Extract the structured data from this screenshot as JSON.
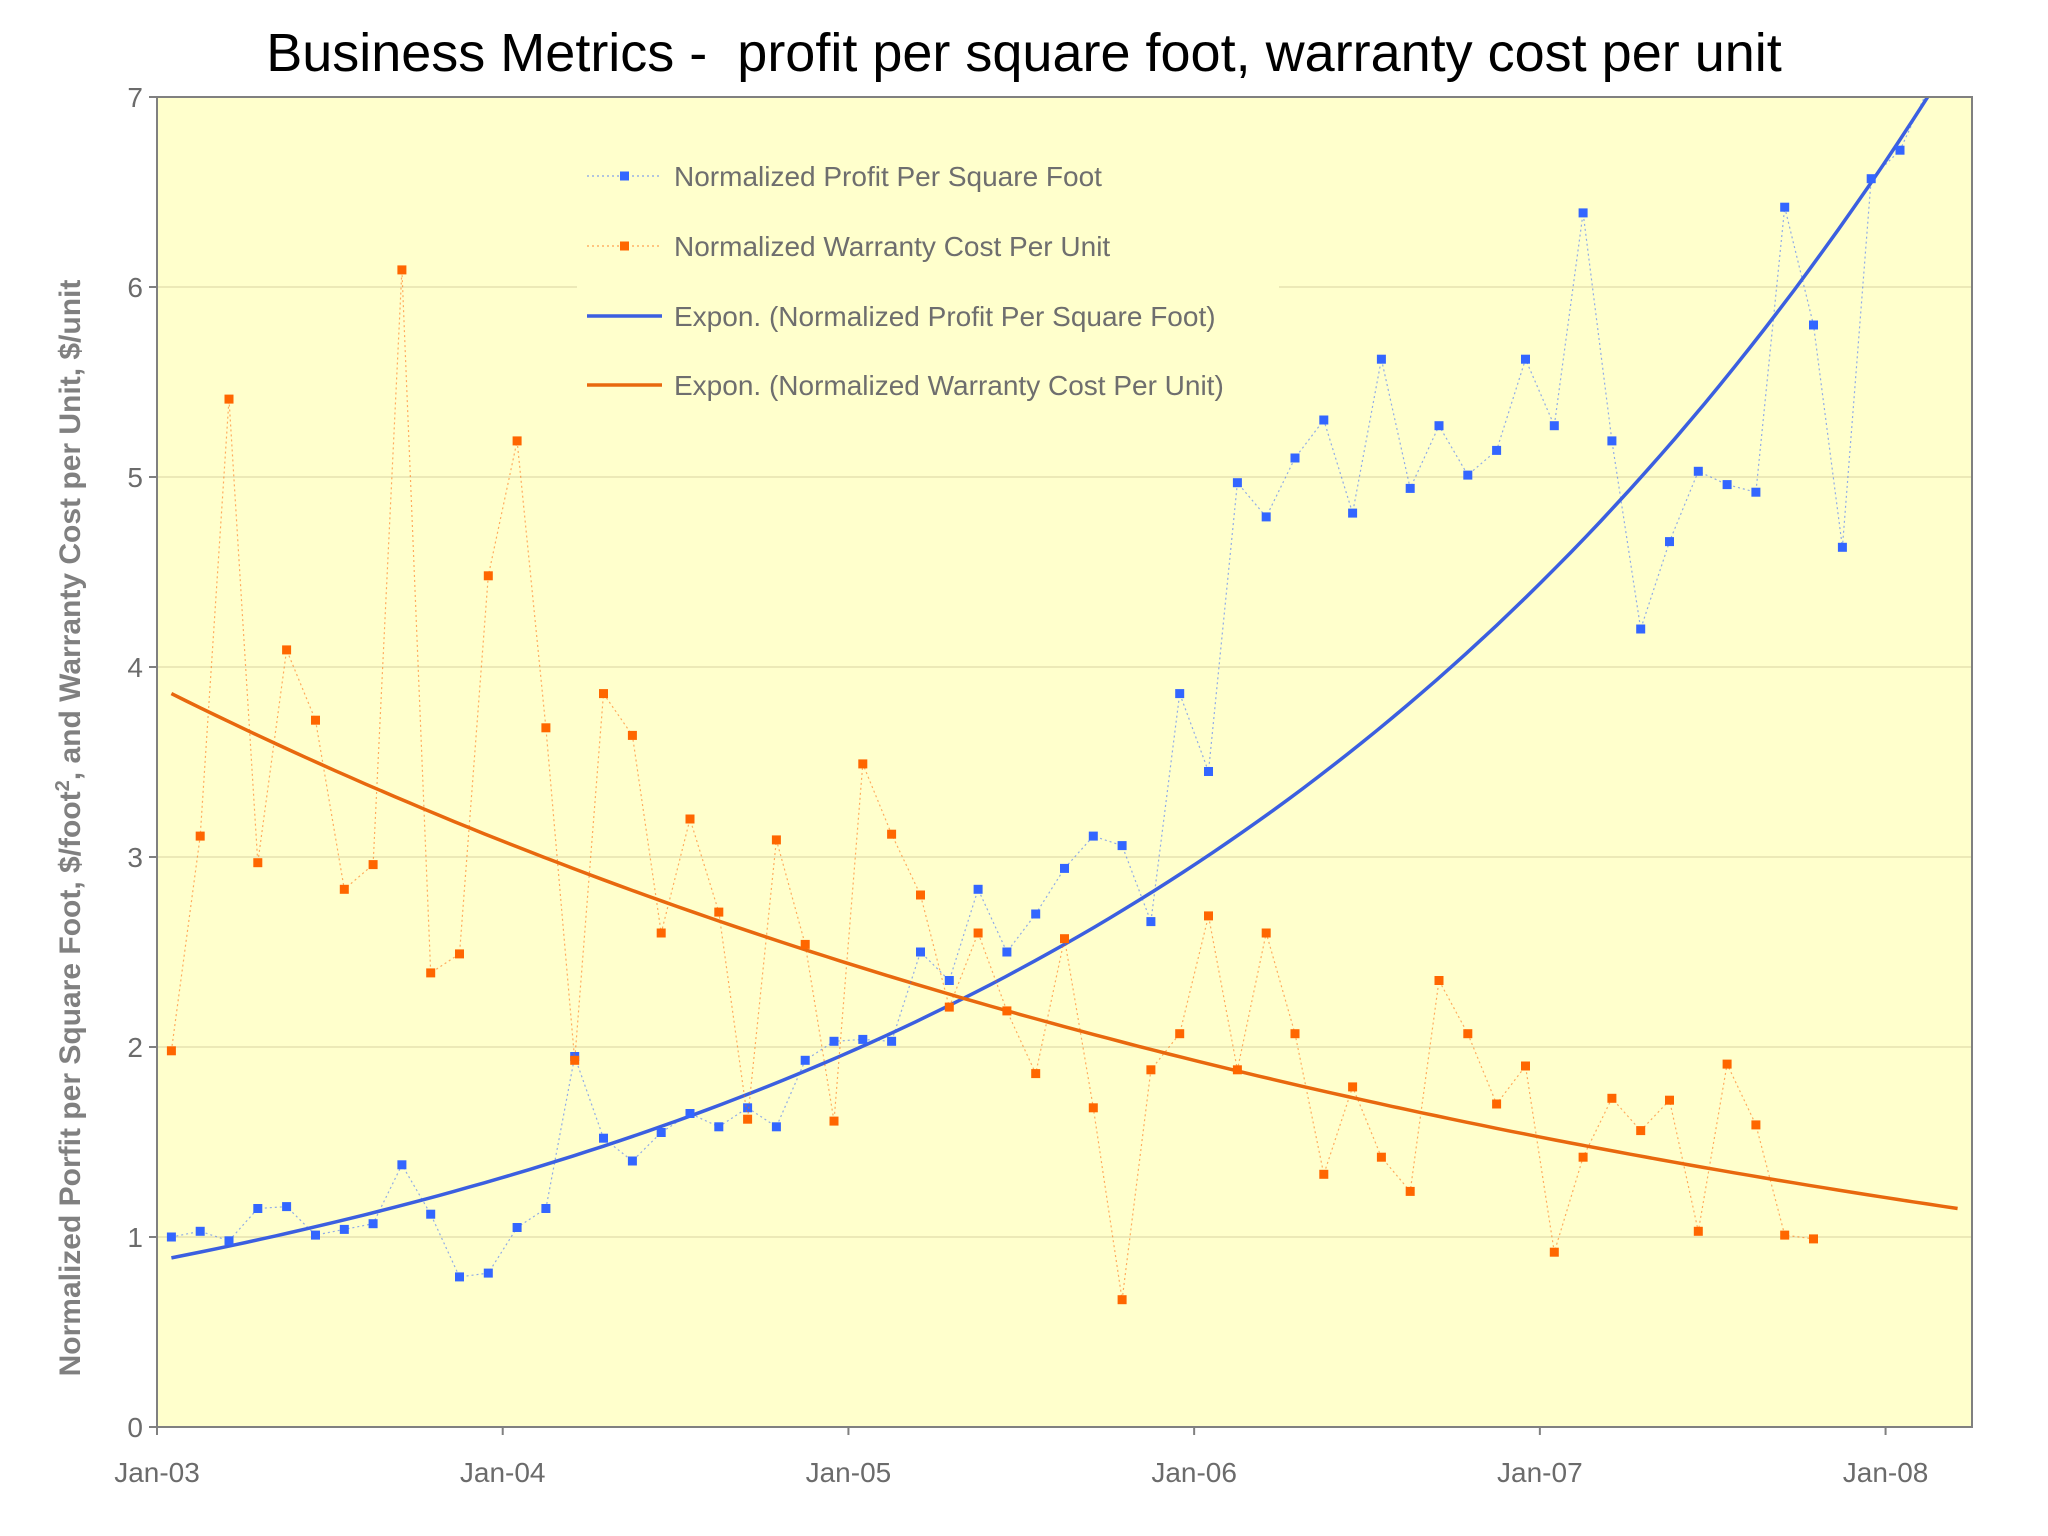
{
  "chart_data": {
    "type": "line",
    "title": "Business Metrics -  profit per square foot, warranty cost per unit",
    "ylabel_parts": [
      "Normalized Porfit per Square Foot, $/foot",
      "2",
      ", and Warranty Cost per Unit, $/unit"
    ],
    "ylim": [
      0,
      7
    ],
    "yticks": [
      0,
      1,
      2,
      3,
      4,
      5,
      6,
      7
    ],
    "x_start": "2003-01",
    "x_end": "2008-03",
    "xticks": [
      {
        "label": "Jan-03",
        "month": "2003-01"
      },
      {
        "label": "Jan-04",
        "month": "2004-01"
      },
      {
        "label": "Jan-05",
        "month": "2005-01"
      },
      {
        "label": "Jan-06",
        "month": "2006-01"
      },
      {
        "label": "Jan-07",
        "month": "2007-01"
      },
      {
        "label": "Jan-08",
        "month": "2008-01"
      }
    ],
    "grid": true,
    "legend_position": "top-center",
    "colors": {
      "plot_background": "#FFFFCC",
      "profit": "#3366FF",
      "warranty": "#FF6600",
      "profit_trend": "#3B5FE0",
      "warranty_trend": "#E8680E",
      "grid": "#E6E2B0"
    },
    "series": [
      {
        "name": "Normalized Profit Per Square Foot",
        "style": "markers-dotted",
        "color": "#3366FF",
        "start": "2003-01",
        "values": [
          1.0,
          1.03,
          0.98,
          1.15,
          1.16,
          1.01,
          1.04,
          1.07,
          1.38,
          1.12,
          0.79,
          0.81,
          1.05,
          1.15,
          1.95,
          1.52,
          1.4,
          1.55,
          1.65,
          1.58,
          1.68,
          1.58,
          1.93,
          2.03,
          2.04,
          2.03,
          2.5,
          2.35,
          2.83,
          2.5,
          2.7,
          2.94,
          3.11,
          3.06,
          2.66,
          3.86,
          3.45,
          4.97,
          4.79,
          5.1,
          5.3,
          4.81,
          5.62,
          4.94,
          5.27,
          5.01,
          5.14,
          5.62,
          5.27,
          6.39,
          5.19,
          4.2,
          4.66,
          5.03,
          4.96,
          4.92,
          6.42,
          5.8,
          4.63,
          6.57,
          6.72,
          7.05
        ]
      },
      {
        "name": "Normalized Warranty Cost Per Unit",
        "style": "markers-dotted",
        "color": "#FF6600",
        "start": "2003-01",
        "values": [
          1.98,
          3.11,
          5.41,
          2.97,
          4.09,
          3.72,
          2.83,
          2.96,
          6.09,
          2.39,
          2.49,
          4.48,
          5.19,
          3.68,
          1.93,
          3.86,
          3.64,
          2.6,
          3.2,
          2.71,
          1.62,
          3.09,
          2.54,
          1.61,
          3.49,
          3.12,
          2.8,
          2.21,
          2.6,
          2.19,
          1.86,
          2.57,
          1.68,
          0.67,
          1.88,
          2.07,
          2.69,
          1.88,
          2.6,
          2.07,
          1.33,
          1.79,
          1.42,
          1.24,
          2.35,
          2.07,
          1.7,
          1.9,
          0.92,
          1.42,
          1.73,
          1.56,
          1.72,
          1.03,
          1.91,
          1.59,
          1.01,
          0.99
        ]
      },
      {
        "name": "Expon. (Normalized Profit Per Square Foot)",
        "style": "trendline",
        "color": "#3B5FE0",
        "fit": "exponential",
        "start_month": "2003-01",
        "start_value": 0.89,
        "end_month": "2008-03",
        "end_value": 7.25
      },
      {
        "name": "Expon. (Normalized Warranty Cost Per Unit)",
        "style": "trendline",
        "color": "#E8680E",
        "fit": "exponential",
        "start_month": "2003-01",
        "start_value": 3.86,
        "end_month": "2008-03",
        "end_value": 1.15
      }
    ]
  }
}
